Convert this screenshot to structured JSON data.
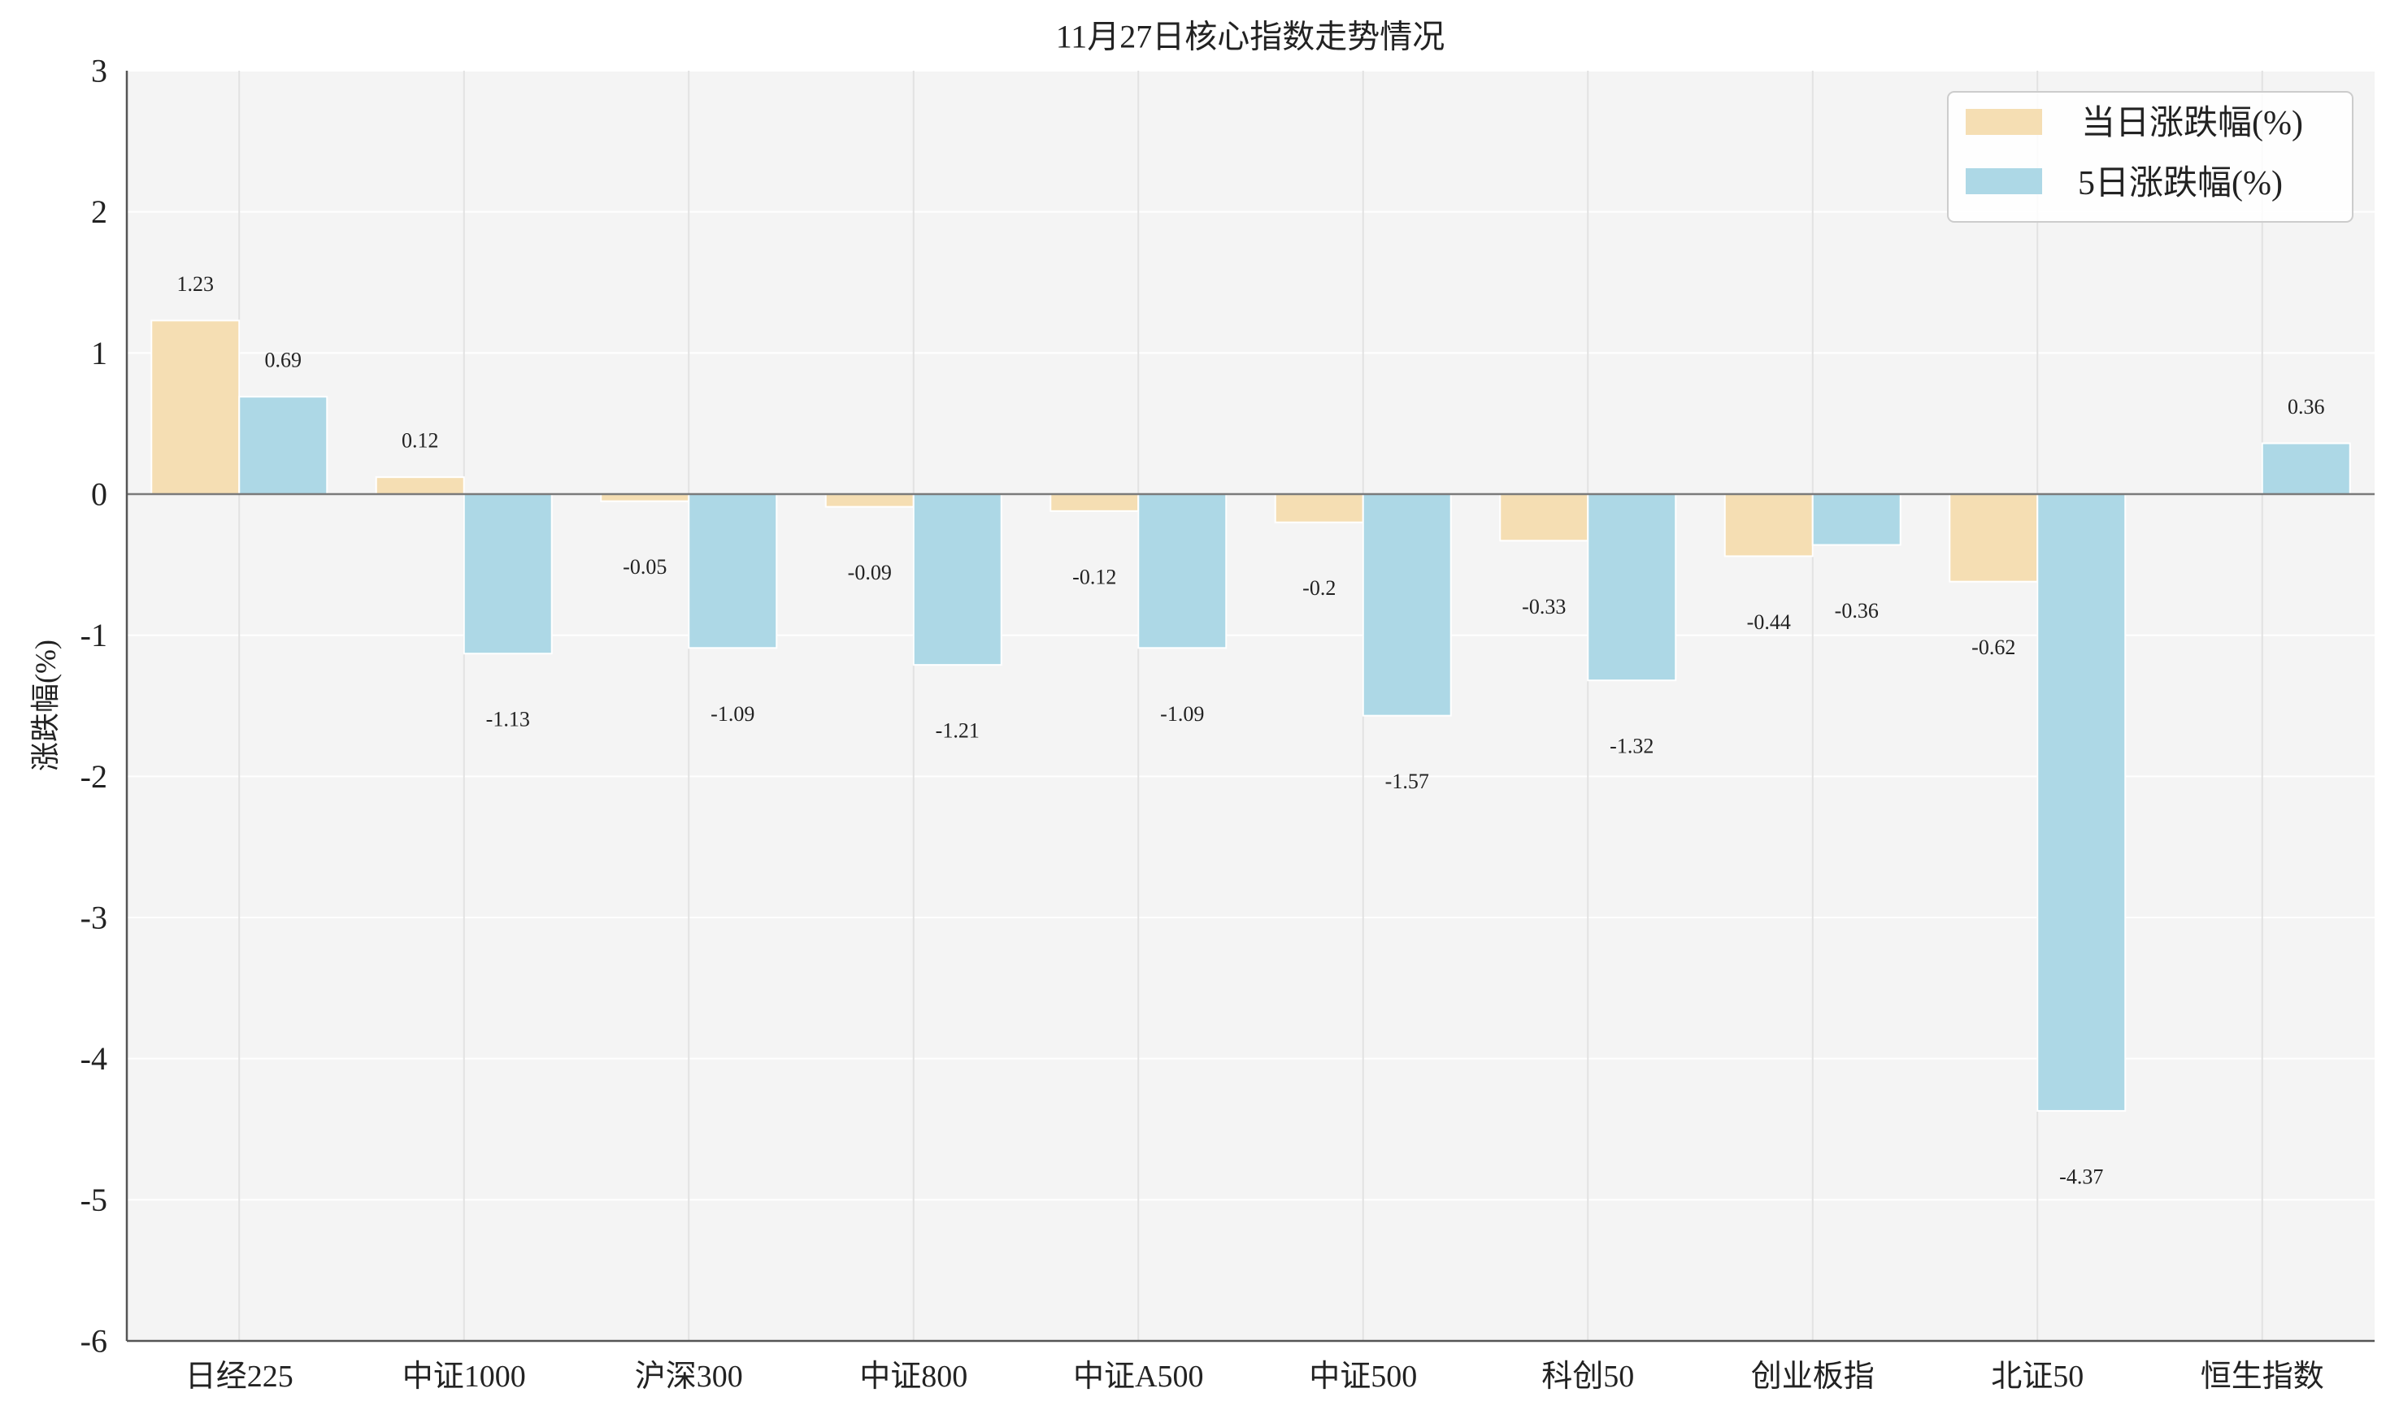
{
  "chart_data": {
    "type": "bar",
    "title": "11月27日核心指数走势情况",
    "xlabel": "",
    "ylabel": "涨跌幅(%)",
    "ylim": [
      -6,
      3
    ],
    "yticks": [
      3,
      2,
      1,
      0,
      -1,
      -2,
      -3,
      -4,
      -5,
      -6
    ],
    "categories": [
      "日经225",
      "中证1000",
      "沪深300",
      "中证800",
      "中证A500",
      "中证500",
      "科创50",
      "创业板指",
      "北证50",
      "恒生指数"
    ],
    "series": [
      {
        "name": "当日涨跌幅(%)",
        "color": "#F5DEB3",
        "values": [
          1.23,
          0.12,
          -0.05,
          -0.09,
          -0.12,
          -0.2,
          -0.33,
          -0.44,
          -0.62,
          null
        ]
      },
      {
        "name": "5日涨跌幅(%)",
        "color": "#ADD8E6",
        "values": [
          0.69,
          -1.13,
          -1.09,
          -1.21,
          -1.09,
          -1.57,
          -1.32,
          -0.36,
          -4.37,
          0.36
        ]
      }
    ],
    "legend": "top-right",
    "grid": true
  }
}
